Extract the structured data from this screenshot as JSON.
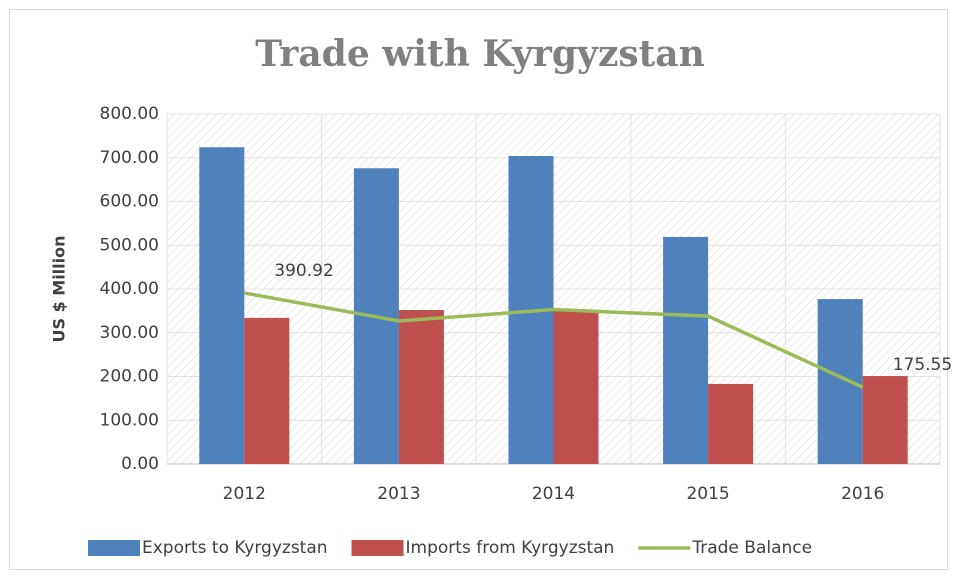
{
  "chart_data": {
    "type": "bar",
    "title": "Trade with Kyrgyzstan",
    "y_label": "US $ Million",
    "categories": [
      "2012",
      "2013",
      "2014",
      "2015",
      "2016"
    ],
    "series": [
      {
        "name": "Exports to Kyrgyzstan",
        "type": "bar",
        "color": "#4f81bd",
        "values": [
          724,
          676,
          704,
          519,
          377
        ]
      },
      {
        "name": "Imports from Kyrgyzstan",
        "type": "bar",
        "color": "#c0504d",
        "values": [
          334,
          352,
          351,
          183,
          201
        ]
      },
      {
        "name": "Trade Balance",
        "type": "line",
        "color": "#9bbb59",
        "values": [
          390.92,
          327,
          353,
          338,
          175.55
        ],
        "value_labels": [
          "390.92",
          null,
          null,
          null,
          "175.55"
        ]
      }
    ],
    "ylim": [
      0,
      800
    ],
    "yticks": [
      {
        "value": 0,
        "label": "0.00"
      },
      {
        "value": 100,
        "label": "100.00"
      },
      {
        "value": 200,
        "label": "200.00"
      },
      {
        "value": 300,
        "label": "300.00"
      },
      {
        "value": 400,
        "label": "400.00"
      },
      {
        "value": 500,
        "label": "500.00"
      },
      {
        "value": 600,
        "label": "600.00"
      },
      {
        "value": 700,
        "label": "700.00"
      },
      {
        "value": 800,
        "label": "800.00"
      }
    ],
    "grid": true,
    "legend": "bottom"
  }
}
